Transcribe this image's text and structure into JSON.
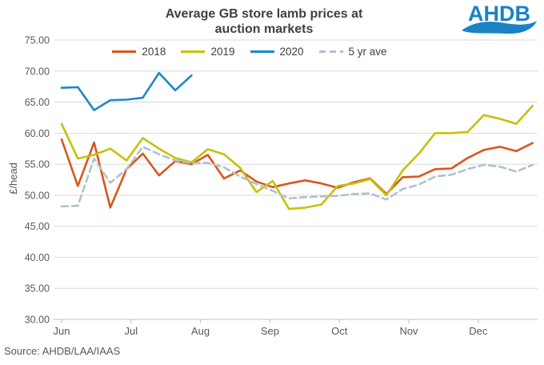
{
  "header": {
    "title_line1": "Average GB store lamb prices at",
    "title_line2": "auction markets",
    "logo_text": "AHDB"
  },
  "footer": {
    "source": "Source: AHDB/LAA/IAAS"
  },
  "colors": {
    "title_text": "#404040",
    "axis_text": "#595959",
    "gridline": "#D9D9D9",
    "axis_line": "#BFBFBF",
    "logo_blue": "#1A82C5"
  },
  "chart_data": {
    "type": "line",
    "title": "Average GB store lamb prices at auction markets",
    "xlabel": "",
    "ylabel": "£/head",
    "ylim": [
      30,
      75
    ],
    "ytick_labels": [
      "30.00",
      "35.00",
      "40.00",
      "45.00",
      "50.00",
      "55.00",
      "60.00",
      "65.00",
      "70.00",
      "75.00"
    ],
    "xtick_labels": [
      "Jun",
      "Jul",
      "Aug",
      "Sep",
      "Oct",
      "Nov",
      "Dec"
    ],
    "x_unit": "week",
    "grid": true,
    "legend_position": "top",
    "series": [
      {
        "name": "2018",
        "color": "#D9571E",
        "style": "solid",
        "values": [
          59.0,
          51.5,
          58.5,
          48.0,
          54.2,
          56.7,
          53.2,
          55.5,
          55.0,
          56.5,
          52.7,
          54.0,
          52.2,
          51.3,
          51.9,
          52.4,
          51.9,
          51.2,
          52.1,
          52.7,
          50.2,
          52.9,
          53.0,
          54.2,
          54.3,
          56.0,
          57.3,
          57.8,
          57.1,
          58.4
        ]
      },
      {
        "name": "2019",
        "color": "#C5C207",
        "style": "solid",
        "values": [
          61.5,
          55.9,
          56.5,
          57.5,
          55.6,
          59.2,
          57.5,
          56.0,
          55.3,
          57.4,
          56.6,
          54.4,
          50.5,
          52.3,
          47.8,
          48.0,
          48.5,
          51.5,
          51.9,
          52.6,
          50.0,
          54.0,
          56.7,
          60.0,
          60.0,
          60.2,
          62.9,
          62.3,
          61.5,
          64.4
        ]
      },
      {
        "name": "2020",
        "color": "#1E87C8",
        "style": "solid",
        "values": [
          67.3,
          67.4,
          63.7,
          65.3,
          65.4,
          65.7,
          69.7,
          66.9,
          69.3
        ]
      },
      {
        "name": "5 yr ave",
        "color": "#AEC2CD",
        "style": "dashed",
        "values": [
          48.2,
          48.3,
          55.9,
          52.0,
          54.2,
          57.8,
          56.6,
          55.6,
          55.2,
          55.2,
          54.5,
          53.0,
          51.8,
          50.7,
          49.5,
          49.7,
          49.8,
          49.9,
          50.2,
          50.3,
          49.3,
          51.0,
          51.7,
          53.0,
          53.3,
          54.2,
          54.9,
          54.6,
          53.8,
          54.9
        ]
      }
    ]
  }
}
